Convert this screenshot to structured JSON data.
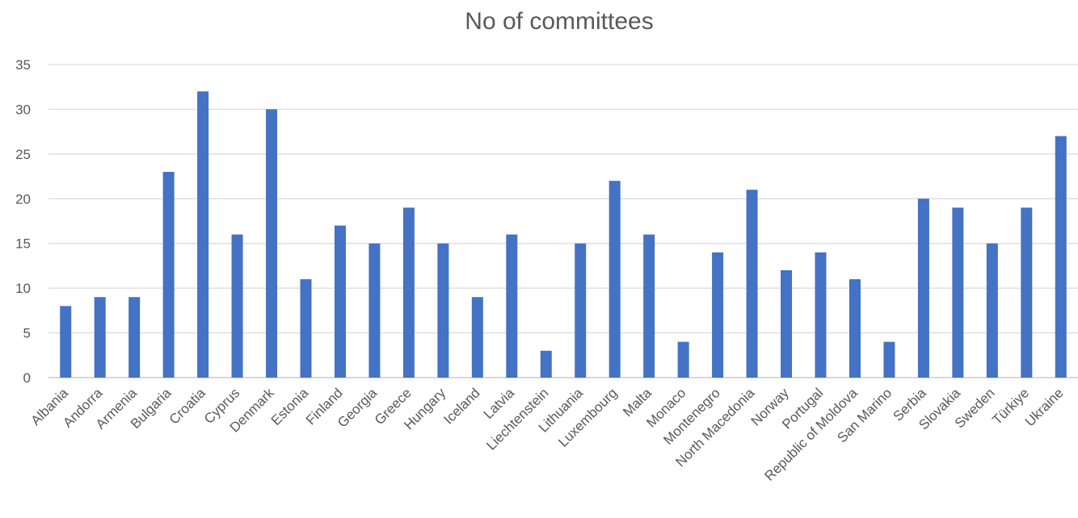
{
  "chart_data": {
    "type": "bar",
    "title": "No of committees",
    "xlabel": "",
    "ylabel": "",
    "ylim": [
      0,
      35
    ],
    "yticks": [
      0,
      5,
      10,
      15,
      20,
      25,
      30,
      35
    ],
    "grid": true,
    "legend": "none",
    "bar_color": "#4472C4",
    "categories": [
      "Albania",
      "Andorra",
      "Armenia",
      "Bulgaria",
      "Croatia",
      "Cyprus",
      "Denmark",
      "Estonia",
      "Finland",
      "Georgia",
      "Greece",
      "Hungary",
      "Iceland",
      "Latvia",
      "Liechtenstein",
      "Lithuania",
      "Luxembourg",
      "Malta",
      "Monaco",
      "Montenegro",
      "North Macedonia",
      "Norway",
      "Portugal",
      "Republic of Moldova",
      "San Marino",
      "Serbia",
      "Slovakia",
      "Sweden",
      "Türkiye",
      "Ukraine"
    ],
    "values": [
      8,
      9,
      9,
      23,
      32,
      16,
      30,
      11,
      17,
      15,
      19,
      15,
      9,
      16,
      3,
      15,
      22,
      16,
      4,
      14,
      21,
      12,
      14,
      11,
      4,
      20,
      19,
      15,
      19,
      27
    ]
  }
}
